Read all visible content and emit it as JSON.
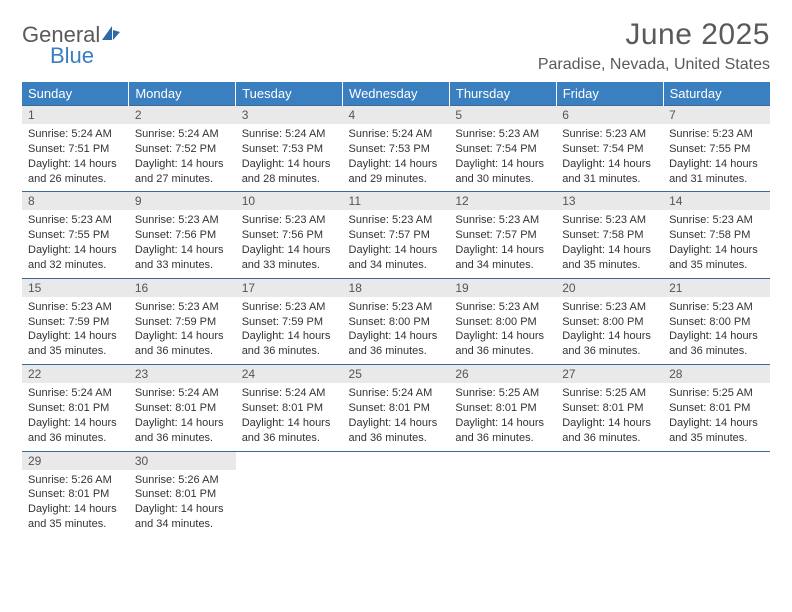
{
  "brand": {
    "word1": "General",
    "word2": "Blue"
  },
  "title": "June 2025",
  "location": "Paradise, Nevada, United States",
  "colors": {
    "header_bg": "#3a7fbf",
    "header_text": "#ffffff",
    "daynum_bg": "#e9e9e9",
    "rule": "#3a6a95",
    "text": "#333333",
    "muted": "#5a5a5a"
  },
  "weekdays": [
    "Sunday",
    "Monday",
    "Tuesday",
    "Wednesday",
    "Thursday",
    "Friday",
    "Saturday"
  ],
  "weeks": [
    [
      {
        "n": "1",
        "sr": "5:24 AM",
        "ss": "7:51 PM",
        "dl": "14 hours and 26 minutes."
      },
      {
        "n": "2",
        "sr": "5:24 AM",
        "ss": "7:52 PM",
        "dl": "14 hours and 27 minutes."
      },
      {
        "n": "3",
        "sr": "5:24 AM",
        "ss": "7:53 PM",
        "dl": "14 hours and 28 minutes."
      },
      {
        "n": "4",
        "sr": "5:24 AM",
        "ss": "7:53 PM",
        "dl": "14 hours and 29 minutes."
      },
      {
        "n": "5",
        "sr": "5:23 AM",
        "ss": "7:54 PM",
        "dl": "14 hours and 30 minutes."
      },
      {
        "n": "6",
        "sr": "5:23 AM",
        "ss": "7:54 PM",
        "dl": "14 hours and 31 minutes."
      },
      {
        "n": "7",
        "sr": "5:23 AM",
        "ss": "7:55 PM",
        "dl": "14 hours and 31 minutes."
      }
    ],
    [
      {
        "n": "8",
        "sr": "5:23 AM",
        "ss": "7:55 PM",
        "dl": "14 hours and 32 minutes."
      },
      {
        "n": "9",
        "sr": "5:23 AM",
        "ss": "7:56 PM",
        "dl": "14 hours and 33 minutes."
      },
      {
        "n": "10",
        "sr": "5:23 AM",
        "ss": "7:56 PM",
        "dl": "14 hours and 33 minutes."
      },
      {
        "n": "11",
        "sr": "5:23 AM",
        "ss": "7:57 PM",
        "dl": "14 hours and 34 minutes."
      },
      {
        "n": "12",
        "sr": "5:23 AM",
        "ss": "7:57 PM",
        "dl": "14 hours and 34 minutes."
      },
      {
        "n": "13",
        "sr": "5:23 AM",
        "ss": "7:58 PM",
        "dl": "14 hours and 35 minutes."
      },
      {
        "n": "14",
        "sr": "5:23 AM",
        "ss": "7:58 PM",
        "dl": "14 hours and 35 minutes."
      }
    ],
    [
      {
        "n": "15",
        "sr": "5:23 AM",
        "ss": "7:59 PM",
        "dl": "14 hours and 35 minutes."
      },
      {
        "n": "16",
        "sr": "5:23 AM",
        "ss": "7:59 PM",
        "dl": "14 hours and 36 minutes."
      },
      {
        "n": "17",
        "sr": "5:23 AM",
        "ss": "7:59 PM",
        "dl": "14 hours and 36 minutes."
      },
      {
        "n": "18",
        "sr": "5:23 AM",
        "ss": "8:00 PM",
        "dl": "14 hours and 36 minutes."
      },
      {
        "n": "19",
        "sr": "5:23 AM",
        "ss": "8:00 PM",
        "dl": "14 hours and 36 minutes."
      },
      {
        "n": "20",
        "sr": "5:23 AM",
        "ss": "8:00 PM",
        "dl": "14 hours and 36 minutes."
      },
      {
        "n": "21",
        "sr": "5:23 AM",
        "ss": "8:00 PM",
        "dl": "14 hours and 36 minutes."
      }
    ],
    [
      {
        "n": "22",
        "sr": "5:24 AM",
        "ss": "8:01 PM",
        "dl": "14 hours and 36 minutes."
      },
      {
        "n": "23",
        "sr": "5:24 AM",
        "ss": "8:01 PM",
        "dl": "14 hours and 36 minutes."
      },
      {
        "n": "24",
        "sr": "5:24 AM",
        "ss": "8:01 PM",
        "dl": "14 hours and 36 minutes."
      },
      {
        "n": "25",
        "sr": "5:24 AM",
        "ss": "8:01 PM",
        "dl": "14 hours and 36 minutes."
      },
      {
        "n": "26",
        "sr": "5:25 AM",
        "ss": "8:01 PM",
        "dl": "14 hours and 36 minutes."
      },
      {
        "n": "27",
        "sr": "5:25 AM",
        "ss": "8:01 PM",
        "dl": "14 hours and 36 minutes."
      },
      {
        "n": "28",
        "sr": "5:25 AM",
        "ss": "8:01 PM",
        "dl": "14 hours and 35 minutes."
      }
    ],
    [
      {
        "n": "29",
        "sr": "5:26 AM",
        "ss": "8:01 PM",
        "dl": "14 hours and 35 minutes."
      },
      {
        "n": "30",
        "sr": "5:26 AM",
        "ss": "8:01 PM",
        "dl": "14 hours and 34 minutes."
      },
      null,
      null,
      null,
      null,
      null
    ]
  ],
  "labels": {
    "sunrise": "Sunrise:",
    "sunset": "Sunset:",
    "daylight": "Daylight:"
  }
}
